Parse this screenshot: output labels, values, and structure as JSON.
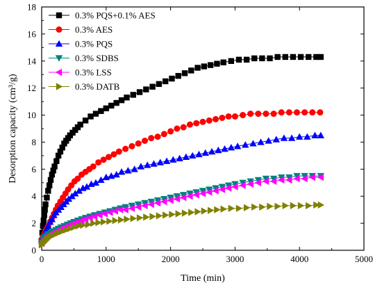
{
  "chart_data": {
    "type": "scatter",
    "xlabel": "Time (min)",
    "ylabel": "Desorption capacity (cm³/g)",
    "xlim": [
      0,
      5000
    ],
    "ylim": [
      0,
      18
    ],
    "x_ticks": [
      0,
      1000,
      2000,
      3000,
      4000,
      5000
    ],
    "y_ticks": [
      0,
      2,
      4,
      6,
      8,
      10,
      12,
      14,
      16,
      18
    ],
    "grid": false,
    "legend_position": "top-left",
    "series": [
      {
        "name": "0.3% PQS+0.1% AES",
        "color": "#000000",
        "marker": "square",
        "x": [
          0,
          10,
          20,
          30,
          40,
          50,
          60,
          80,
          100,
          120,
          140,
          160,
          180,
          200,
          230,
          260,
          290,
          320,
          350,
          380,
          410,
          440,
          480,
          520,
          560,
          600,
          680,
          760,
          840,
          920,
          1000,
          1080,
          1160,
          1240,
          1320,
          1420,
          1520,
          1620,
          1720,
          1820,
          1920,
          2020,
          2120,
          2220,
          2320,
          2420,
          2520,
          2620,
          2720,
          2820,
          2940,
          3060,
          3180,
          3300,
          3420,
          3540,
          3660,
          3780,
          3900,
          4020,
          4140,
          4260,
          4330
        ],
        "y": [
          0.7,
          1.3,
          1.8,
          2.2,
          2.6,
          3.0,
          3.4,
          3.9,
          4.4,
          4.8,
          5.2,
          5.6,
          5.9,
          6.2,
          6.6,
          7.0,
          7.3,
          7.6,
          7.9,
          8.1,
          8.3,
          8.5,
          8.7,
          8.9,
          9.1,
          9.3,
          9.6,
          9.9,
          10.1,
          10.3,
          10.5,
          10.7,
          10.9,
          11.1,
          11.3,
          11.5,
          11.7,
          11.9,
          12.1,
          12.3,
          12.5,
          12.7,
          12.9,
          13.1,
          13.3,
          13.5,
          13.6,
          13.7,
          13.8,
          13.9,
          14.0,
          14.1,
          14.1,
          14.2,
          14.2,
          14.2,
          14.3,
          14.3,
          14.3,
          14.3,
          14.3,
          14.3,
          14.3
        ]
      },
      {
        "name": "0.3% AES",
        "color": "#ff0000",
        "marker": "circle",
        "x": [
          0,
          20,
          40,
          60,
          80,
          100,
          130,
          160,
          190,
          220,
          250,
          290,
          330,
          370,
          410,
          460,
          510,
          560,
          620,
          680,
          740,
          800,
          880,
          960,
          1040,
          1120,
          1200,
          1300,
          1400,
          1500,
          1600,
          1700,
          1800,
          1900,
          2000,
          2100,
          2200,
          2300,
          2400,
          2500,
          2600,
          2700,
          2800,
          2900,
          3000,
          3120,
          3240,
          3360,
          3480,
          3600,
          3720,
          3840,
          3960,
          4080,
          4200,
          4320
        ],
        "y": [
          0.8,
          1.0,
          1.2,
          1.4,
          1.6,
          1.8,
          2.1,
          2.4,
          2.7,
          3.0,
          3.3,
          3.6,
          3.9,
          4.2,
          4.5,
          4.8,
          5.1,
          5.3,
          5.6,
          5.8,
          6.0,
          6.2,
          6.5,
          6.7,
          6.9,
          7.1,
          7.3,
          7.5,
          7.7,
          7.9,
          8.1,
          8.3,
          8.4,
          8.6,
          8.8,
          9.0,
          9.1,
          9.3,
          9.4,
          9.5,
          9.6,
          9.7,
          9.8,
          9.9,
          9.9,
          10.0,
          10.1,
          10.1,
          10.1,
          10.1,
          10.2,
          10.2,
          10.2,
          10.2,
          10.2,
          10.2
        ]
      },
      {
        "name": "0.3% PQS",
        "color": "#0000ff",
        "marker": "triangle-up",
        "x": [
          0,
          20,
          40,
          60,
          80,
          100,
          130,
          160,
          190,
          220,
          260,
          300,
          340,
          380,
          420,
          470,
          520,
          580,
          640,
          700,
          770,
          840,
          920,
          1000,
          1080,
          1160,
          1240,
          1340,
          1440,
          1540,
          1640,
          1740,
          1840,
          1940,
          2040,
          2140,
          2240,
          2340,
          2440,
          2540,
          2640,
          2740,
          2840,
          2940,
          3040,
          3160,
          3280,
          3400,
          3520,
          3640,
          3760,
          3880,
          4000,
          4120,
          4240,
          4330
        ],
        "y": [
          0.8,
          1.0,
          1.2,
          1.4,
          1.6,
          1.8,
          2.1,
          2.3,
          2.6,
          2.8,
          3.0,
          3.2,
          3.4,
          3.6,
          3.8,
          4.0,
          4.2,
          4.4,
          4.6,
          4.7,
          4.9,
          5.0,
          5.2,
          5.4,
          5.5,
          5.6,
          5.8,
          5.9,
          6.0,
          6.2,
          6.3,
          6.4,
          6.5,
          6.6,
          6.7,
          6.8,
          6.9,
          7.0,
          7.1,
          7.2,
          7.3,
          7.4,
          7.5,
          7.6,
          7.7,
          7.8,
          7.9,
          8.0,
          8.1,
          8.2,
          8.3,
          8.3,
          8.4,
          8.4,
          8.5,
          8.5
        ]
      },
      {
        "name": "0.3% SDBS",
        "color": "#008080",
        "marker": "triangle-down",
        "x": [
          0,
          20,
          40,
          60,
          80,
          100,
          140,
          180,
          220,
          260,
          300,
          350,
          400,
          450,
          500,
          560,
          620,
          680,
          750,
          820,
          900,
          980,
          1060,
          1140,
          1220,
          1300,
          1400,
          1500,
          1600,
          1700,
          1800,
          1900,
          2000,
          2100,
          2200,
          2300,
          2400,
          2500,
          2600,
          2700,
          2800,
          2900,
          3000,
          3120,
          3240,
          3360,
          3480,
          3600,
          3720,
          3840,
          3960,
          4080,
          4200,
          4330
        ],
        "y": [
          0.6,
          0.8,
          0.9,
          1.0,
          1.1,
          1.2,
          1.3,
          1.4,
          1.5,
          1.6,
          1.7,
          1.8,
          1.9,
          2.0,
          2.1,
          2.2,
          2.3,
          2.4,
          2.5,
          2.6,
          2.7,
          2.8,
          2.9,
          3.0,
          3.1,
          3.2,
          3.3,
          3.4,
          3.5,
          3.6,
          3.7,
          3.8,
          3.9,
          4.0,
          4.1,
          4.2,
          4.3,
          4.4,
          4.5,
          4.6,
          4.7,
          4.8,
          4.9,
          5.0,
          5.1,
          5.2,
          5.3,
          5.3,
          5.4,
          5.4,
          5.5,
          5.5,
          5.5,
          5.5
        ]
      },
      {
        "name": "0.3% LSS",
        "color": "#ff00ff",
        "marker": "triangle-left",
        "x": [
          0,
          20,
          40,
          60,
          80,
          100,
          140,
          180,
          220,
          260,
          300,
          350,
          400,
          450,
          500,
          560,
          620,
          680,
          750,
          820,
          900,
          980,
          1060,
          1140,
          1220,
          1300,
          1400,
          1500,
          1600,
          1700,
          1800,
          1900,
          2000,
          2100,
          2200,
          2300,
          2400,
          2500,
          2600,
          2700,
          2800,
          2900,
          3000,
          3120,
          3240,
          3360,
          3480,
          3600,
          3720,
          3840,
          3960,
          4080,
          4200,
          4330
        ],
        "y": [
          0.5,
          0.7,
          0.8,
          0.9,
          1.0,
          1.1,
          1.2,
          1.3,
          1.4,
          1.5,
          1.6,
          1.7,
          1.8,
          1.9,
          2.0,
          2.1,
          2.2,
          2.3,
          2.4,
          2.5,
          2.6,
          2.7,
          2.8,
          2.9,
          3.0,
          3.0,
          3.1,
          3.2,
          3.3,
          3.4,
          3.5,
          3.6,
          3.7,
          3.8,
          3.9,
          4.0,
          4.1,
          4.2,
          4.3,
          4.4,
          4.5,
          4.6,
          4.7,
          4.8,
          4.9,
          5.0,
          5.1,
          5.1,
          5.2,
          5.2,
          5.3,
          5.3,
          5.4,
          5.4
        ]
      },
      {
        "name": "0.3% DATB",
        "color": "#808000",
        "marker": "triangle-right",
        "x": [
          0,
          20,
          40,
          60,
          80,
          100,
          140,
          180,
          220,
          270,
          320,
          380,
          440,
          500,
          570,
          640,
          720,
          800,
          880,
          960,
          1050,
          1140,
          1230,
          1320,
          1420,
          1520,
          1620,
          1720,
          1820,
          1920,
          2020,
          2120,
          2220,
          2320,
          2420,
          2520,
          2620,
          2720,
          2820,
          2940,
          3060,
          3180,
          3300,
          3420,
          3540,
          3660,
          3780,
          3900,
          4020,
          4140,
          4260,
          4330
        ],
        "y": [
          0.4,
          0.5,
          0.6,
          0.7,
          0.8,
          0.9,
          1.0,
          1.1,
          1.2,
          1.3,
          1.4,
          1.5,
          1.6,
          1.7,
          1.8,
          1.85,
          1.9,
          2.0,
          2.05,
          2.1,
          2.15,
          2.2,
          2.25,
          2.3,
          2.35,
          2.4,
          2.45,
          2.5,
          2.55,
          2.6,
          2.65,
          2.7,
          2.75,
          2.8,
          2.85,
          2.9,
          2.95,
          3.0,
          3.05,
          3.1,
          3.1,
          3.15,
          3.2,
          3.2,
          3.25,
          3.25,
          3.3,
          3.3,
          3.3,
          3.3,
          3.35,
          3.35
        ]
      }
    ]
  }
}
